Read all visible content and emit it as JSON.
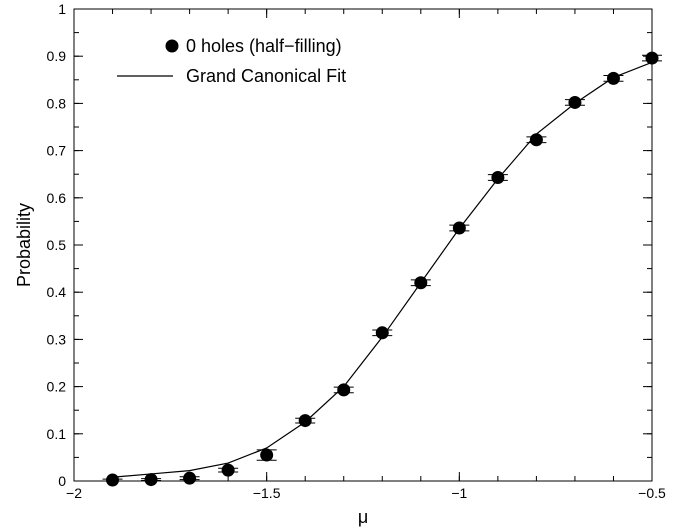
{
  "chart_data": {
    "type": "scatter",
    "xlabel": "μ",
    "ylabel": "Probability",
    "xlim": [
      -2,
      -0.5
    ],
    "ylim": [
      0,
      1
    ],
    "xticks": [
      -2,
      -1.5,
      -1,
      -0.5
    ],
    "xtick_labels": [
      "−2",
      "−1.5",
      "−1",
      "−0.5"
    ],
    "yticks": [
      0,
      0.1,
      0.2,
      0.3,
      0.4,
      0.5,
      0.6,
      0.7,
      0.8,
      0.9,
      1
    ],
    "ytick_labels": [
      "0",
      "0.1",
      "0.2",
      "0.3",
      "0.4",
      "0.5",
      "0.6",
      "0.7",
      "0.8",
      "0.9",
      "1"
    ],
    "grid": false,
    "legend_position": "top-left",
    "series": [
      {
        "name": "0 holes (half−filling)",
        "kind": "points-with-errorbars",
        "color": "#000000",
        "x": [
          -1.9,
          -1.8,
          -1.7,
          -1.6,
          -1.5,
          -1.4,
          -1.3,
          -1.2,
          -1.1,
          -1.0,
          -0.9,
          -0.8,
          -0.7,
          -0.6,
          -0.5
        ],
        "y": [
          0.002,
          0.003,
          0.006,
          0.023,
          0.055,
          0.128,
          0.193,
          0.314,
          0.42,
          0.536,
          0.643,
          0.723,
          0.802,
          0.853,
          0.896
        ],
        "yerr": [
          0.002,
          0.002,
          0.003,
          0.004,
          0.011,
          0.005,
          0.006,
          0.006,
          0.006,
          0.006,
          0.006,
          0.006,
          0.006,
          0.006,
          0.006
        ]
      },
      {
        "name": "Grand Canonical Fit",
        "kind": "line",
        "color": "#000000",
        "x": [
          -1.9,
          -1.8,
          -1.7,
          -1.6,
          -1.5,
          -1.4,
          -1.3,
          -1.2,
          -1.1,
          -1.0,
          -0.9,
          -0.8,
          -0.7,
          -0.6,
          -0.5
        ],
        "y": [
          0.008,
          0.015,
          0.022,
          0.038,
          0.07,
          0.125,
          0.2,
          0.305,
          0.42,
          0.535,
          0.64,
          0.735,
          0.8,
          0.855,
          0.887
        ]
      }
    ]
  }
}
